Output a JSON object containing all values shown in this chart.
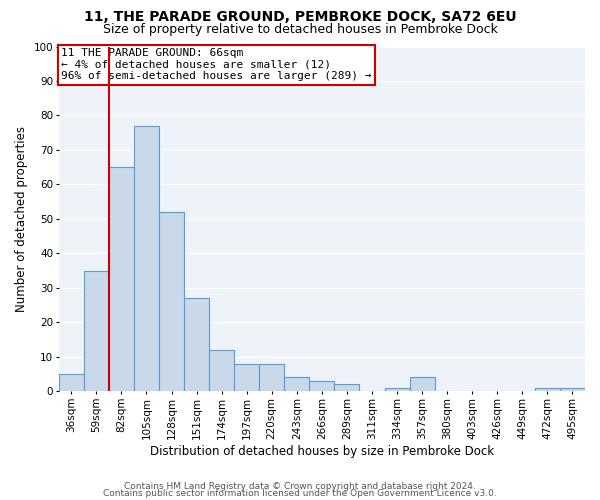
{
  "title1": "11, THE PARADE GROUND, PEMBROKE DOCK, SA72 6EU",
  "title2": "Size of property relative to detached houses in Pembroke Dock",
  "xlabel": "Distribution of detached houses by size in Pembroke Dock",
  "ylabel": "Number of detached properties",
  "footer1": "Contains HM Land Registry data © Crown copyright and database right 2024.",
  "footer2": "Contains public sector information licensed under the Open Government Licence v3.0.",
  "categories": [
    "36sqm",
    "59sqm",
    "82sqm",
    "105sqm",
    "128sqm",
    "151sqm",
    "174sqm",
    "197sqm",
    "220sqm",
    "243sqm",
    "266sqm",
    "289sqm",
    "311sqm",
    "334sqm",
    "357sqm",
    "380sqm",
    "403sqm",
    "426sqm",
    "449sqm",
    "472sqm",
    "495sqm"
  ],
  "values": [
    5,
    35,
    65,
    77,
    52,
    27,
    12,
    8,
    8,
    4,
    3,
    2,
    0,
    1,
    4,
    0,
    0,
    0,
    0,
    1,
    1
  ],
  "bar_color": "#c9d9ea",
  "bar_edge_color": "#5b9bd5",
  "vline_color": "#cc0000",
  "annotation_box_text": "11 THE PARADE GROUND: 66sqm\n← 4% of detached houses are smaller (12)\n96% of semi-detached houses are larger (289) →",
  "box_edge_color": "#cc0000",
  "ylim": [
    0,
    100
  ],
  "yticks": [
    0,
    10,
    20,
    30,
    40,
    50,
    60,
    70,
    80,
    90,
    100
  ],
  "bg_color": "#eef2f9",
  "grid_color": "#ffffff",
  "title1_fontsize": 10,
  "title2_fontsize": 9,
  "xlabel_fontsize": 8.5,
  "ylabel_fontsize": 8.5,
  "tick_fontsize": 7.5,
  "annot_fontsize": 8,
  "footer_fontsize": 6.5,
  "vline_x": 1.5
}
